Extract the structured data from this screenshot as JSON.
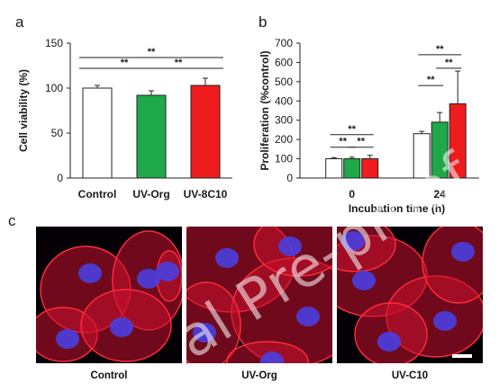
{
  "panels": {
    "a": "a",
    "b": "b",
    "c": "c"
  },
  "chart_data": [
    {
      "type": "bar",
      "ylabel": "Cell viability (%)",
      "ylim": [
        0,
        150
      ],
      "yticks": [
        0,
        50,
        100,
        150
      ],
      "categories": [
        "Control",
        "UV-Org",
        "UV-8C10"
      ],
      "values": [
        100,
        92,
        103
      ],
      "errors": [
        3,
        5,
        8
      ],
      "colors": [
        "#ffffff",
        "#1ea84a",
        "#ee1c1c"
      ],
      "significance": [
        {
          "from": 0,
          "to": 1,
          "label": "**",
          "level": 1
        },
        {
          "from": 1,
          "to": 2,
          "label": "**",
          "level": 1
        },
        {
          "from": 0,
          "to": 2,
          "label": "**",
          "level": 2
        }
      ]
    },
    {
      "type": "bar",
      "ylabel": "Proliferation (%control)",
      "xlabel": "Incubation time (h)",
      "ylim": [
        0,
        700
      ],
      "yticks": [
        0,
        100,
        200,
        300,
        400,
        500,
        600,
        700
      ],
      "categories": [
        "0",
        "24"
      ],
      "series_colors": [
        "#ffffff",
        "#1ea84a",
        "#ee1c1c"
      ],
      "series": [
        {
          "values": [
            100,
            230
          ],
          "errors": [
            6,
            12
          ]
        },
        {
          "values": [
            100,
            290
          ],
          "errors": [
            8,
            50
          ]
        },
        {
          "values": [
            100,
            385
          ],
          "errors": [
            18,
            170
          ]
        }
      ],
      "significance": [
        {
          "group": 0,
          "from": 0,
          "to": 1,
          "label": "**",
          "y": 160
        },
        {
          "group": 0,
          "from": 1,
          "to": 2,
          "label": "**",
          "y": 160
        },
        {
          "group": 0,
          "from": 0,
          "to": 2,
          "label": "**",
          "y": 225
        },
        {
          "group": 1,
          "from": 0,
          "to": 1,
          "label": "**",
          "y": 480
        },
        {
          "group": 1,
          "from": 1,
          "to": 2,
          "label": "**",
          "y": 570
        },
        {
          "group": 1,
          "from": 0,
          "to": 2,
          "label": "**",
          "y": 640
        }
      ]
    }
  ],
  "micrographs": [
    {
      "caption": "Control"
    },
    {
      "caption": "UV-Org"
    },
    {
      "caption": "UV-C10"
    }
  ],
  "watermark": "al Pre-proof"
}
